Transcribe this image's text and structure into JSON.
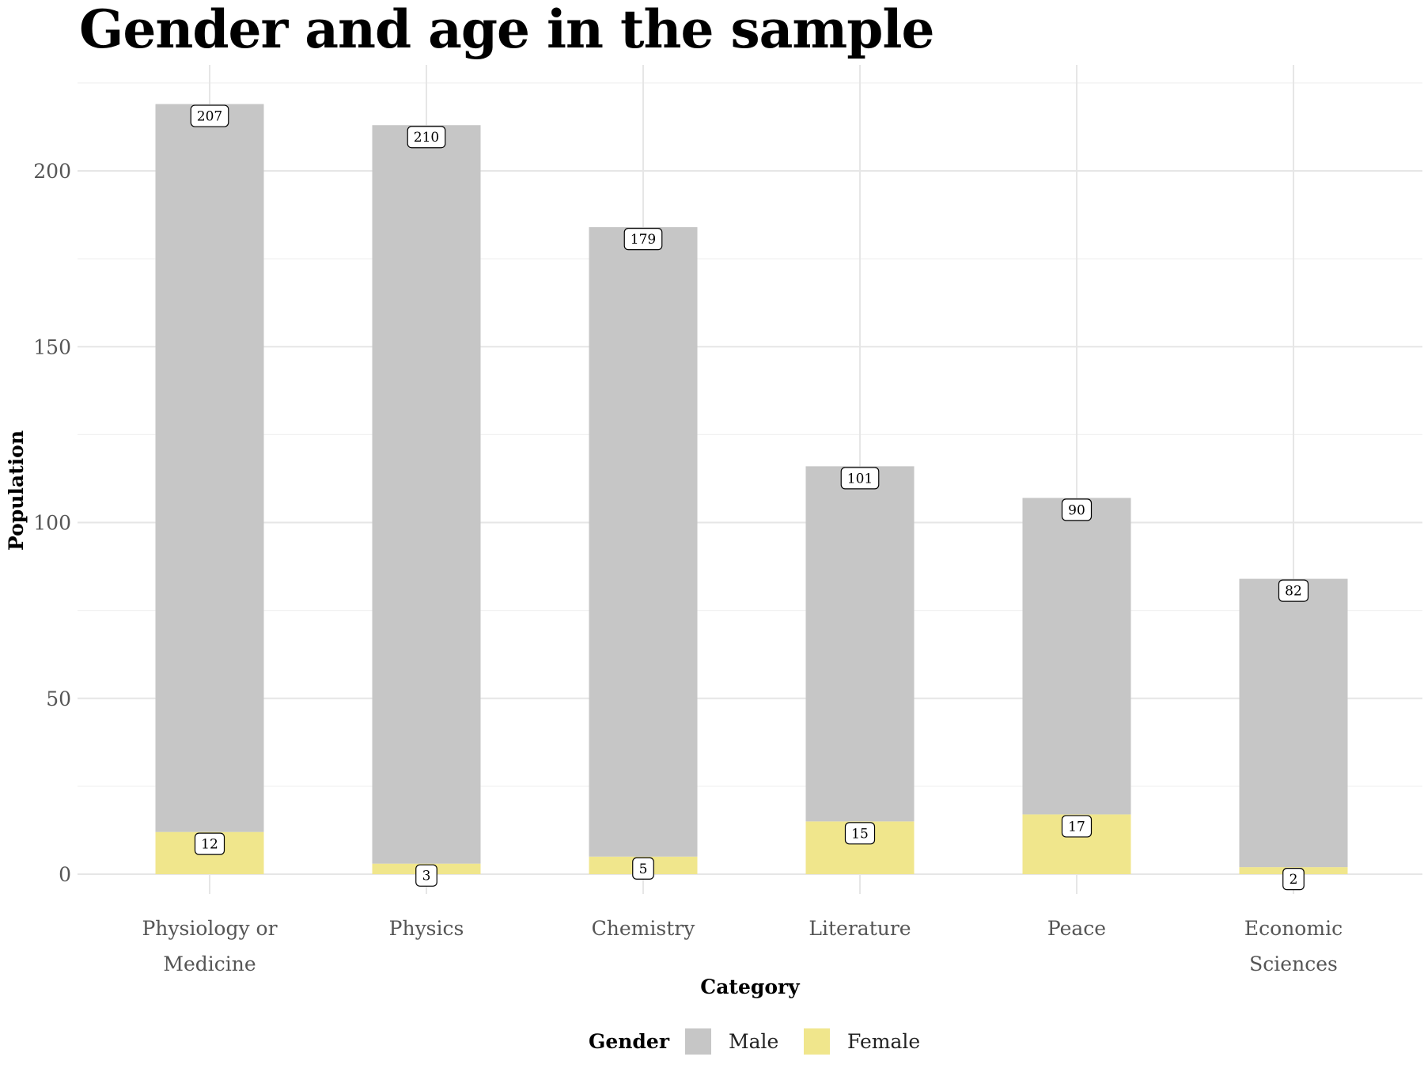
{
  "chart_data": {
    "type": "bar",
    "stacked": true,
    "title": "Gender and age in the sample",
    "xlabel": "Category",
    "ylabel": "Population",
    "categories": [
      [
        "Physiology or",
        "Medicine"
      ],
      [
        "Physics"
      ],
      [
        "Chemistry"
      ],
      [
        "Literature"
      ],
      [
        "Peace"
      ],
      [
        "Economic",
        "Sciences"
      ]
    ],
    "series": [
      {
        "name": "Female",
        "color": "#f0e68c",
        "values": [
          12,
          3,
          5,
          15,
          17,
          2
        ]
      },
      {
        "name": "Male",
        "color": "#c6c6c6",
        "values": [
          207,
          210,
          179,
          101,
          90,
          82
        ]
      }
    ],
    "yticks": [
      0,
      50,
      100,
      150,
      200
    ],
    "ylim": [
      0,
      225
    ],
    "grid": true,
    "legend": {
      "title": "Gender",
      "position": "bottom",
      "items": [
        {
          "label": "Male",
          "color": "#c6c6c6"
        },
        {
          "label": "Female",
          "color": "#f0e68c"
        }
      ]
    }
  }
}
